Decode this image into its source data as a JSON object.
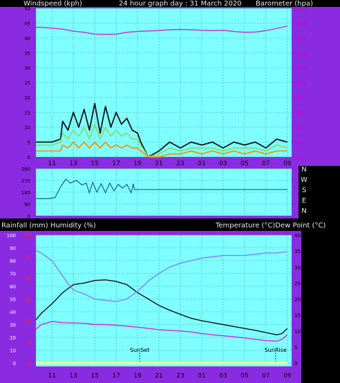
{
  "header": {
    "left": "Windspeed (kph)",
    "center": "24 hour graph day : 31 March 2020",
    "right": "Barometer (hpa)"
  },
  "mid_header": {
    "left": "Rainfall (mm)  Humidity (%)",
    "right": "Temperature (°C)Dew Point (°C)"
  },
  "colors": {
    "frame": "#8a2be2",
    "plot_bg": "#7fffff",
    "grid": "#4aa0a0",
    "baro": "#cc33cc",
    "wind_gust": "#111111",
    "wind_avg": "#7ee070",
    "wind_low": "#ff9000",
    "wind_dir": "#1e5a8a",
    "temp": "#111111",
    "humidity": "#8080ff",
    "dew": "#dd22dd",
    "rain": "#ffff80"
  },
  "chart_data": [
    {
      "type": "line",
      "title": "24 hour graph day : 31 March 2020",
      "x_ticks": [
        "11",
        "13",
        "15",
        "17",
        "19",
        "21",
        "23",
        "01",
        "03",
        "05",
        "07",
        "09"
      ],
      "y_left_label": "Windspeed (kph)",
      "y_left_ticks": [
        0,
        5,
        10,
        15,
        20,
        25,
        30,
        35,
        40,
        45,
        50
      ],
      "y_left_range": [
        0,
        50
      ],
      "y_right_label": "Barometer (hpa)",
      "y_right_ticks": [
        975,
        980,
        985,
        990,
        995,
        1000,
        1005,
        1010,
        1015,
        1020,
        1025
      ],
      "y_right_range": [
        975,
        1025
      ],
      "series": [
        {
          "name": "Barometer",
          "axis": "right",
          "x": [
            9.5,
            10,
            11,
            12,
            13,
            14,
            15,
            16,
            17,
            18,
            19,
            20,
            21,
            22,
            23,
            24,
            25,
            26,
            27,
            28,
            29,
            30,
            31,
            32,
            33
          ],
          "values": [
            1018.6,
            1018.6,
            1018.3,
            1018.0,
            1017.3,
            1016.9,
            1016.3,
            1016.2,
            1016.3,
            1016.9,
            1017.2,
            1017.4,
            1017.5,
            1017.8,
            1017.9,
            1017.8,
            1017.6,
            1017.5,
            1017.6,
            1017.2,
            1016.9,
            1017.0,
            1017.5,
            1018.2,
            1019.0
          ]
        },
        {
          "name": "Wind gust",
          "axis": "left",
          "x": [
            9.5,
            10,
            11,
            11.8,
            12,
            12.5,
            13,
            13.5,
            14,
            14.5,
            15,
            15.5,
            16,
            16.5,
            17,
            17.5,
            18,
            18.5,
            19,
            19.3,
            20,
            21,
            22,
            23,
            24,
            25,
            26,
            27,
            28,
            29,
            30,
            31,
            32,
            33
          ],
          "values": [
            5,
            5,
            5,
            6,
            12,
            9,
            15,
            10,
            16,
            9,
            18,
            8,
            17,
            10,
            15,
            11,
            13,
            9,
            8,
            5,
            0,
            2,
            5,
            3,
            5,
            4,
            5,
            3,
            5,
            4,
            5,
            3,
            6,
            5
          ]
        },
        {
          "name": "Wind average",
          "axis": "left",
          "x": [
            9.5,
            10,
            11,
            11.8,
            12,
            12.5,
            13,
            13.5,
            14,
            14.5,
            15,
            15.5,
            16,
            16.5,
            17,
            17.5,
            18,
            18.5,
            19,
            19.3,
            20,
            21,
            22,
            23,
            24,
            25,
            26,
            27,
            28,
            29,
            30,
            31,
            32,
            33
          ],
          "values": [
            4,
            4,
            4,
            5,
            8,
            6,
            9,
            7,
            10,
            6,
            11,
            6,
            10,
            7,
            9,
            7,
            8,
            6,
            6,
            4,
            0,
            1,
            3,
            2,
            3,
            3,
            3,
            2,
            3,
            3,
            3,
            2,
            4,
            3
          ]
        },
        {
          "name": "Wind lull",
          "axis": "left",
          "x": [
            9.5,
            10,
            11,
            11.8,
            12,
            12.5,
            13,
            13.5,
            14,
            14.5,
            15,
            15.5,
            16,
            16.5,
            17,
            17.5,
            18,
            18.5,
            19,
            19.3,
            20,
            21,
            22,
            23,
            24,
            25,
            26,
            27,
            28,
            29,
            30,
            31,
            32,
            33
          ],
          "values": [
            2,
            2,
            2,
            2,
            4,
            3,
            5,
            3,
            5,
            3,
            5,
            3,
            5,
            3,
            4,
            3,
            4,
            3,
            3,
            2,
            0,
            0,
            1,
            1,
            2,
            1,
            2,
            1,
            2,
            1,
            2,
            1,
            2,
            2
          ]
        }
      ]
    },
    {
      "type": "line",
      "y_left_ticks": [
        0,
        90,
        180,
        270,
        360
      ],
      "y_left_range": [
        0,
        360
      ],
      "y_right_ticks": [
        "N",
        "W",
        "S",
        "E",
        "N"
      ],
      "series": [
        {
          "name": "Wind direction",
          "x": [
            9.5,
            10.7,
            11.3,
            11.8,
            12.3,
            12.7,
            13.3,
            13.8,
            14.2,
            14.5,
            14.8,
            15.2,
            15.6,
            16.0,
            16.4,
            16.8,
            17.2,
            17.6,
            18.0,
            18.4,
            18.6,
            18.7,
            19.0,
            33.0
          ],
          "values": [
            130,
            130,
            140,
            220,
            280,
            250,
            270,
            235,
            250,
            175,
            255,
            180,
            245,
            175,
            250,
            190,
            240,
            210,
            240,
            175,
            245,
            200,
            200,
            200
          ]
        }
      ]
    },
    {
      "type": "line",
      "x_ticks": [
        "11",
        "13",
        "15",
        "17",
        "19",
        "21",
        "23",
        "01",
        "03",
        "05",
        "07",
        "09"
      ],
      "y_left_label": "Rainfall (mm)  Humidity (%)",
      "y_left_ticks": [
        0,
        10,
        20,
        30,
        40,
        50,
        60,
        70,
        80,
        90,
        100
      ],
      "y_left_range": [
        0,
        100
      ],
      "y_left2_ticks": [
        0,
        5,
        10,
        15,
        20,
        25,
        30
      ],
      "y_left2_range": [
        0,
        30
      ],
      "y_right_label": "Temperature (°C)Dew Point (°C)",
      "y_right_ticks": [
        0,
        5,
        10,
        15,
        20,
        25,
        30,
        35,
        40
      ],
      "y_right_range": [
        0,
        40
      ],
      "annotations": [
        {
          "text": "SunSet",
          "x": 19.2
        },
        {
          "text": "SunRise",
          "x": 31.9
        }
      ],
      "series": [
        {
          "name": "Temperature",
          "axis": "right",
          "x": [
            9.5,
            10,
            11,
            12,
            13,
            14,
            15,
            16,
            17,
            18,
            19,
            20,
            21,
            22,
            23,
            24,
            25,
            26,
            27,
            28,
            29,
            30,
            31,
            32,
            32.5,
            33
          ],
          "values": [
            13.5,
            15.5,
            18.5,
            22,
            24.5,
            25,
            25.8,
            26,
            25.5,
            24.5,
            22,
            20,
            18,
            16.5,
            15.2,
            14,
            13.2,
            12.6,
            12,
            11.4,
            10.8,
            10.2,
            9.5,
            8.8,
            9.2,
            10.8
          ]
        },
        {
          "name": "Humidity",
          "axis": "left",
          "x": [
            9.5,
            10,
            11,
            12,
            12.5,
            13,
            14,
            15,
            16,
            17,
            18,
            19,
            19.5,
            20,
            21,
            22,
            23,
            24,
            25,
            26,
            27,
            28,
            29,
            30,
            31,
            32,
            33
          ],
          "values": [
            88,
            86,
            80,
            68,
            62,
            57,
            54,
            50,
            49,
            48,
            50,
            56,
            60,
            64,
            70,
            75,
            78,
            80,
            82,
            83,
            84,
            84,
            84,
            85,
            86,
            86,
            87
          ]
        },
        {
          "name": "Dew point",
          "axis": "right",
          "x": [
            9.5,
            10,
            11,
            12,
            13,
            14,
            15,
            16,
            17,
            18,
            19,
            20,
            21,
            22,
            23,
            24,
            25,
            26,
            27,
            28,
            29,
            30,
            31,
            32,
            32.5,
            33
          ],
          "values": [
            10.5,
            12,
            13,
            12.6,
            12.5,
            12.4,
            12,
            12,
            11.8,
            11.5,
            11.2,
            10.8,
            10.4,
            10.2,
            10,
            9.7,
            9.2,
            8.8,
            8.5,
            8.2,
            7.8,
            7.4,
            7.0,
            6.8,
            7.4,
            8.8
          ]
        },
        {
          "name": "Rainfall",
          "axis": "left2",
          "x": [
            9.5,
            33
          ],
          "values": [
            0,
            0
          ]
        }
      ]
    }
  ]
}
